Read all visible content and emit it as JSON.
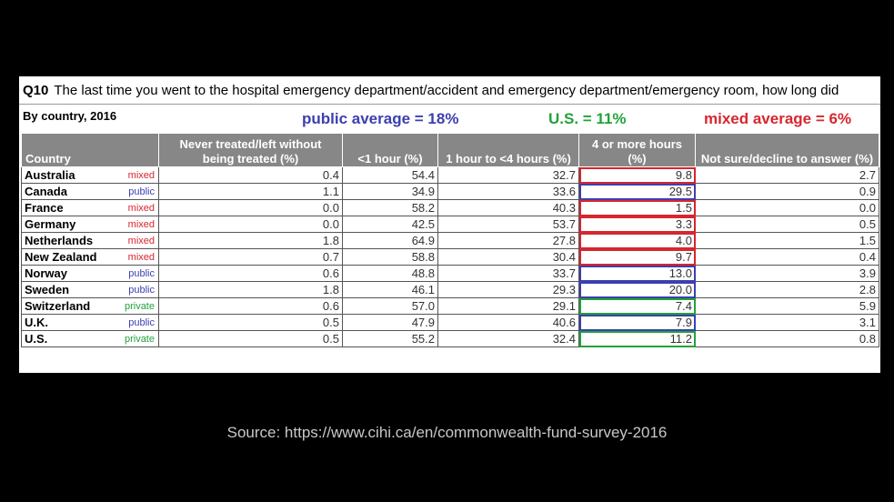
{
  "question": {
    "number": "Q10",
    "text": "The last time you went to the hospital emergency department/accident and emergency department/emergency room, how long did"
  },
  "subtitle": "By country, 2016",
  "averages": {
    "public": "public average = 18%",
    "us": "U.S. = 11%",
    "mixed": "mixed average = 6%"
  },
  "colors": {
    "mixed": "#d7262e",
    "public": "#3c3fb0",
    "private": "#22a23a"
  },
  "columns": [
    "Country",
    "Never treated/left without being treated (%)",
    "<1 hour (%)",
    "1 hour to <4 hours (%)",
    "4 or more hours (%)",
    "Not sure/decline to answer (%)"
  ],
  "rows": [
    {
      "country": "Australia",
      "type": "mixed",
      "never": "0.4",
      "lt1": "54.4",
      "h1to4": "32.7",
      "ge4": "9.8",
      "notsure": "2.7"
    },
    {
      "country": "Canada",
      "type": "public",
      "never": "1.1",
      "lt1": "34.9",
      "h1to4": "33.6",
      "ge4": "29.5",
      "notsure": "0.9"
    },
    {
      "country": "France",
      "type": "mixed",
      "never": "0.0",
      "lt1": "58.2",
      "h1to4": "40.3",
      "ge4": "1.5",
      "notsure": "0.0"
    },
    {
      "country": "Germany",
      "type": "mixed",
      "never": "0.0",
      "lt1": "42.5",
      "h1to4": "53.7",
      "ge4": "3.3",
      "notsure": "0.5"
    },
    {
      "country": "Netherlands",
      "type": "mixed",
      "never": "1.8",
      "lt1": "64.9",
      "h1to4": "27.8",
      "ge4": "4.0",
      "notsure": "1.5"
    },
    {
      "country": "New Zealand",
      "type": "mixed",
      "never": "0.7",
      "lt1": "58.8",
      "h1to4": "30.4",
      "ge4": "9.7",
      "notsure": "0.4"
    },
    {
      "country": "Norway",
      "type": "public",
      "never": "0.6",
      "lt1": "48.8",
      "h1to4": "33.7",
      "ge4": "13.0",
      "notsure": "3.9"
    },
    {
      "country": "Sweden",
      "type": "public",
      "never": "1.8",
      "lt1": "46.1",
      "h1to4": "29.3",
      "ge4": "20.0",
      "notsure": "2.8"
    },
    {
      "country": "Switzerland",
      "type": "private",
      "never": "0.6",
      "lt1": "57.0",
      "h1to4": "29.1",
      "ge4": "7.4",
      "notsure": "5.9"
    },
    {
      "country": "U.K.",
      "type": "public",
      "never": "0.5",
      "lt1": "47.9",
      "h1to4": "40.6",
      "ge4": "7.9",
      "notsure": "3.1"
    },
    {
      "country": "U.S.",
      "type": "private",
      "never": "0.5",
      "lt1": "55.2",
      "h1to4": "32.4",
      "ge4": "11.2",
      "notsure": "0.8"
    }
  ],
  "source": "Source: https://www.cihi.ca/en/commonwealth-fund-survey-2016"
}
